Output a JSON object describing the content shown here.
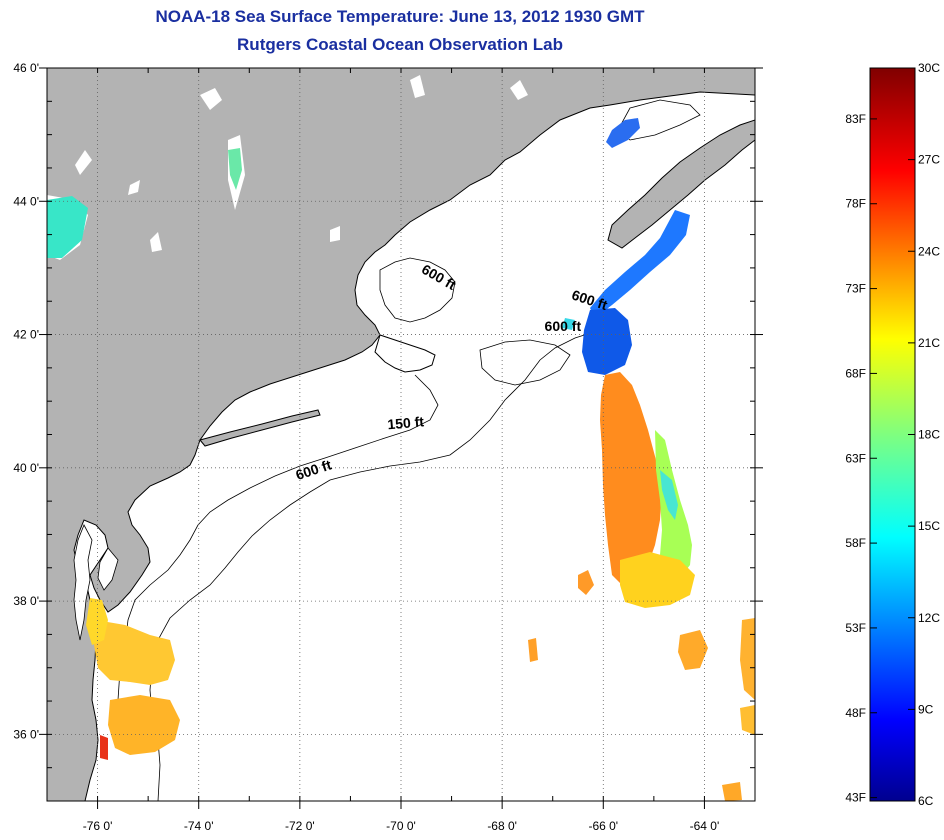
{
  "title": {
    "line1": "NOAA-18 Sea Surface Temperature:  June 13, 2012 1930 GMT",
    "line2": "Rutgers Coastal Ocean Observation Lab"
  },
  "map": {
    "lon_range": [
      -77,
      -63
    ],
    "lat_range": [
      35,
      46
    ],
    "lat_labels": [
      {
        "value": 46,
        "text": "46 0'"
      },
      {
        "value": 44,
        "text": "44 0'"
      },
      {
        "value": 42,
        "text": "42 0'"
      },
      {
        "value": 40,
        "text": "40 0'"
      },
      {
        "value": 38,
        "text": "38 0'"
      },
      {
        "value": 36,
        "text": "36 0'"
      }
    ],
    "lon_labels": [
      {
        "value": -76,
        "text": "-76 0'"
      },
      {
        "value": -74,
        "text": "-74 0'"
      },
      {
        "value": -72,
        "text": "-72 0'"
      },
      {
        "value": -70,
        "text": "-70 0'"
      },
      {
        "value": -68,
        "text": "-68 0'"
      },
      {
        "value": -66,
        "text": "-66 0'"
      },
      {
        "value": -64,
        "text": "-64 0'"
      }
    ],
    "contour_labels": [
      {
        "text": "600 ft",
        "lon": -69.3,
        "lat": 42.8,
        "angle": 30
      },
      {
        "text": "600 ft",
        "lon": -66.3,
        "lat": 42.45,
        "angle": 18
      },
      {
        "text": "600 ft",
        "lon": -66.8,
        "lat": 42.05,
        "angle": 0
      },
      {
        "text": "150 ft",
        "lon": -69.9,
        "lat": 40.6,
        "angle": -5
      },
      {
        "text": "600 ft",
        "lon": -71.7,
        "lat": 39.9,
        "angle": -18
      }
    ],
    "colors": {
      "land": "#b3b3b3",
      "water": "#ffffff",
      "coast": "#000000"
    }
  },
  "colorbar": {
    "range_c": [
      6,
      30
    ],
    "celsius_labels": [
      "30C",
      "27C",
      "24C",
      "21C",
      "18C",
      "15C",
      "12C",
      "9C",
      "6C"
    ],
    "fahrenheit_labels": [
      {
        "value": 83,
        "text": "83F"
      },
      {
        "value": 78,
        "text": "78F"
      },
      {
        "value": 73,
        "text": "73F"
      },
      {
        "value": 68,
        "text": "68F"
      },
      {
        "value": 63,
        "text": "63F"
      },
      {
        "value": 58,
        "text": "58F"
      },
      {
        "value": 53,
        "text": "53F"
      },
      {
        "value": 48,
        "text": "48F"
      },
      {
        "value": 43,
        "text": "43F"
      }
    ]
  }
}
